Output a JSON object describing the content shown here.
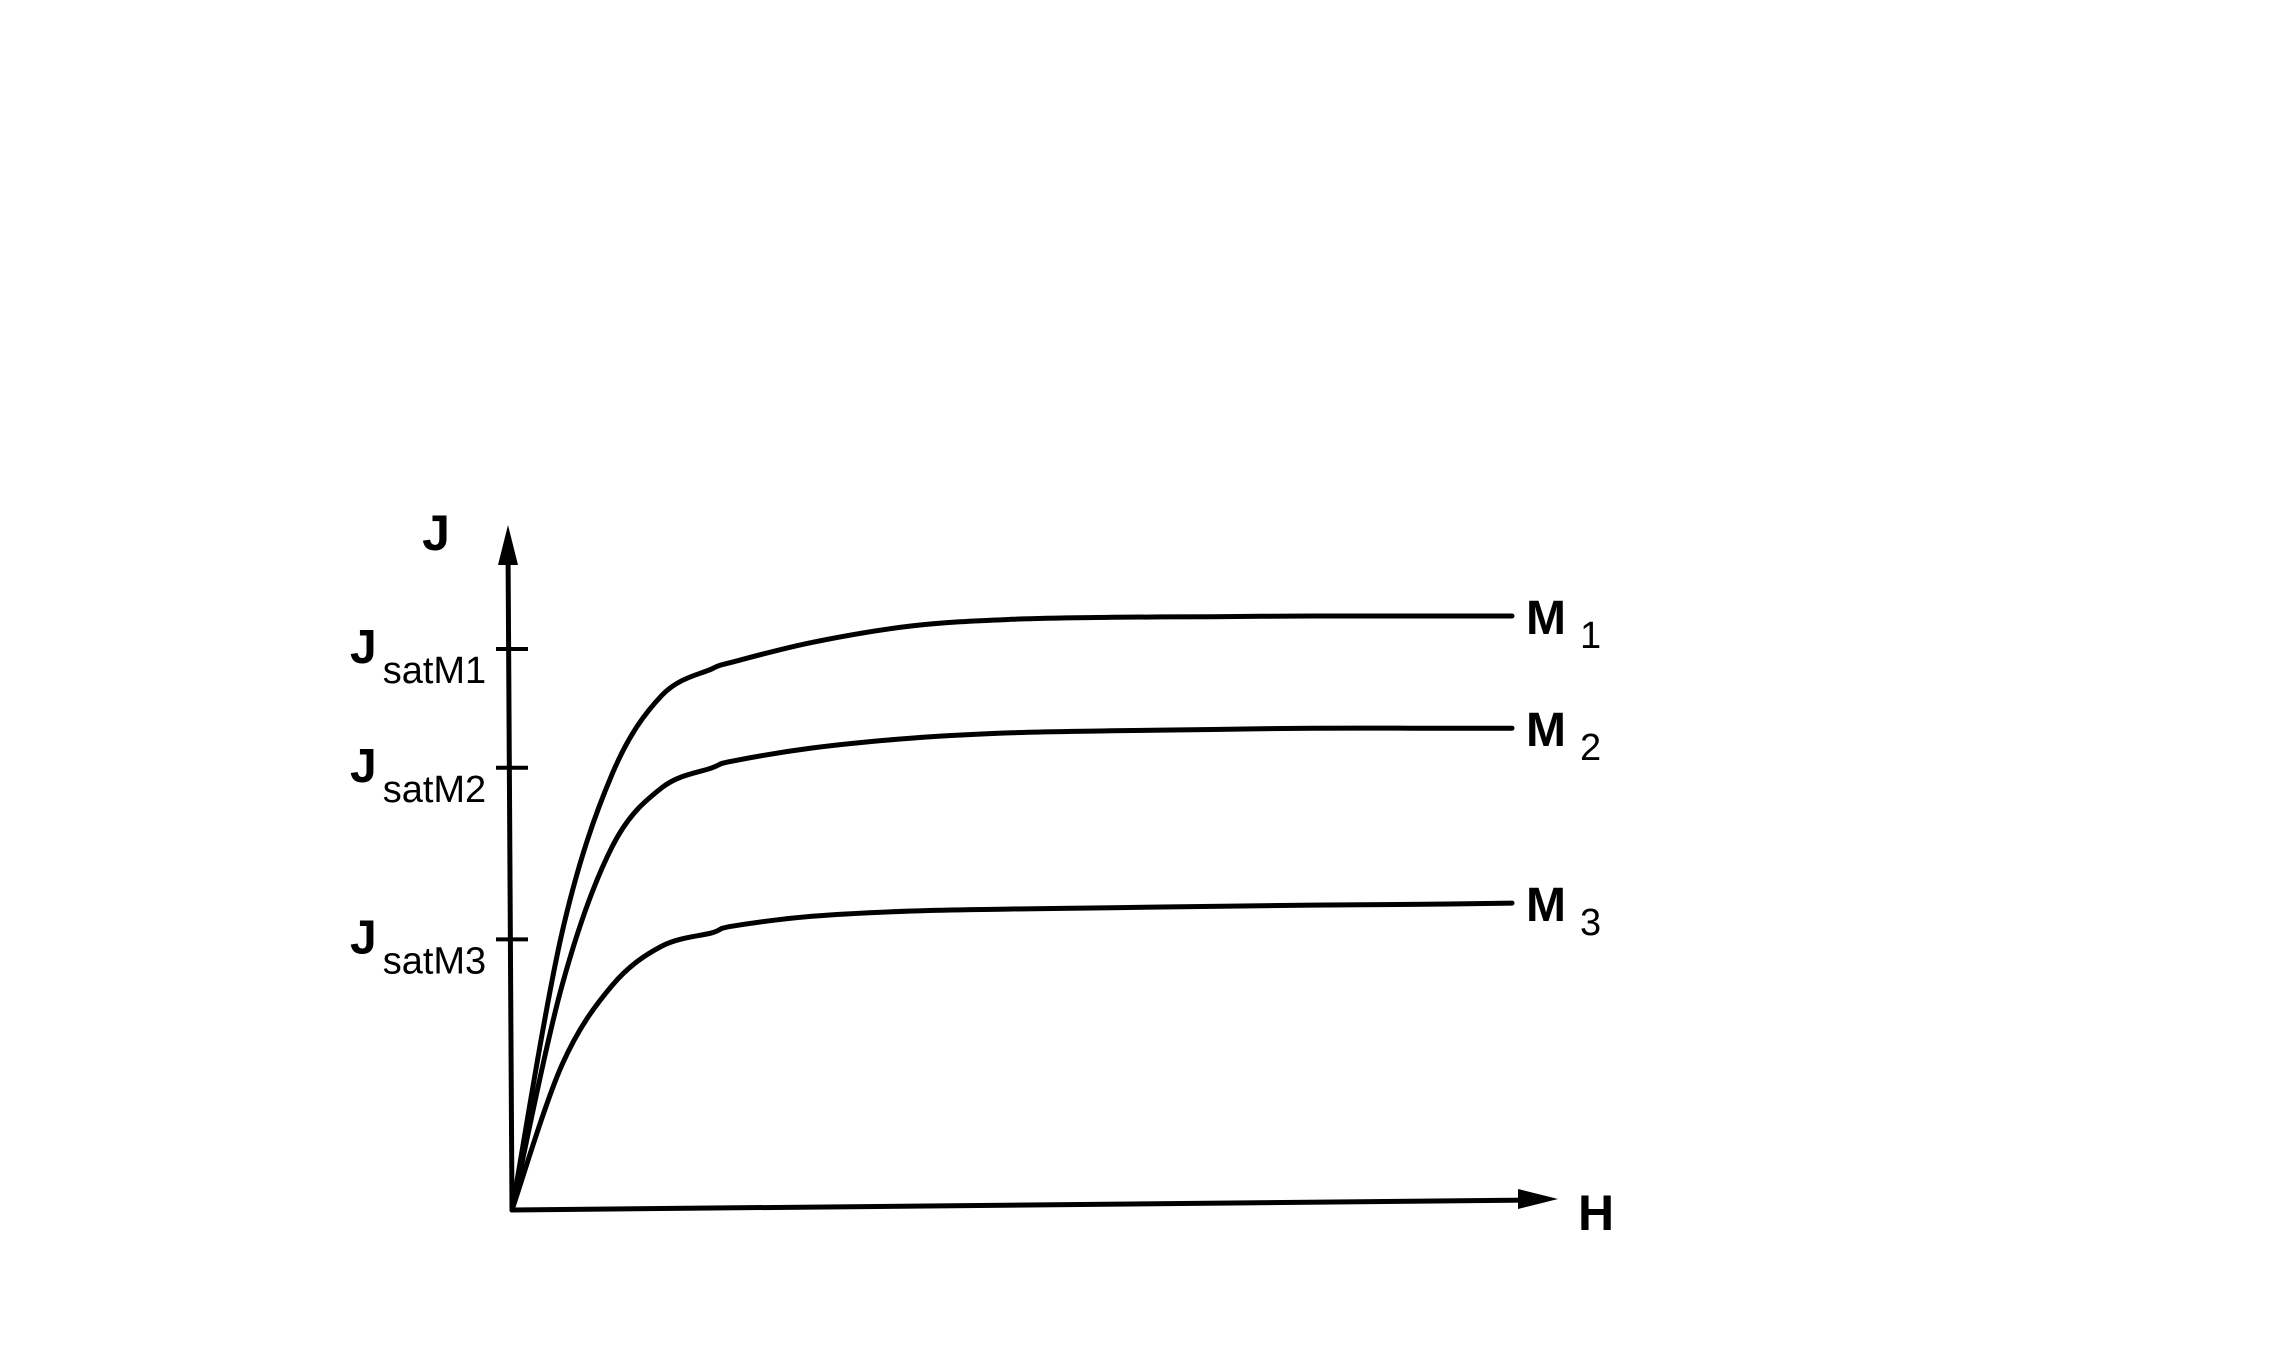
{
  "chart_data": {
    "type": "line",
    "title": "",
    "xlabel": "H",
    "ylabel": "J",
    "xlim": [
      0,
      100
    ],
    "ylim": [
      0,
      100
    ],
    "grid": false,
    "legend": "none",
    "yticks": [
      {
        "main": "J",
        "sub": "satM1",
        "value": 85
      },
      {
        "main": "J",
        "sub": "satM2",
        "value": 67
      },
      {
        "main": "J",
        "sub": "satM3",
        "value": 41
      }
    ],
    "series": [
      {
        "name": "M",
        "sub": "1",
        "x": [
          0,
          5,
          10,
          15,
          20,
          22,
          30,
          40,
          50,
          60,
          70,
          80,
          90,
          100
        ],
        "y": [
          0,
          42,
          66,
          78,
          82,
          83,
          86,
          88.5,
          89.5,
          89.8,
          89.9,
          90,
          90,
          90
        ]
      },
      {
        "name": "M",
        "sub": "2",
        "x": [
          0,
          5,
          10,
          15,
          20,
          22,
          30,
          40,
          50,
          60,
          70,
          80,
          90,
          100
        ],
        "y": [
          0,
          34,
          55,
          64,
          67,
          68,
          70,
          71.5,
          72.3,
          72.6,
          72.8,
          73,
          73,
          73
        ]
      },
      {
        "name": "M",
        "sub": "3",
        "x": [
          0,
          5,
          10,
          15,
          20,
          22,
          30,
          40,
          50,
          60,
          70,
          80,
          90,
          100
        ],
        "y": [
          0,
          22,
          34,
          40,
          42,
          43,
          44.5,
          45.3,
          45.6,
          45.8,
          46,
          46.2,
          46.3,
          46.5
        ]
      }
    ]
  }
}
